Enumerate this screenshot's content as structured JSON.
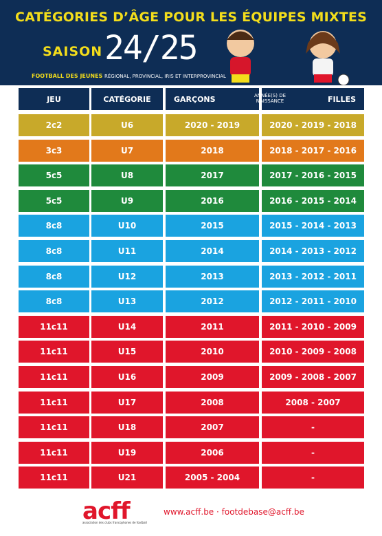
{
  "header": {
    "title": "CATÉGORIES D’ÂGE POUR LES ÉQUIPES MIXTES",
    "saison": "SAISON",
    "season": "24/25",
    "subtitle_bold": "FOOTBALL DES JEUNES",
    "subtitle": "RÉGIONAL, PROVINCIAL, IRIS ET INTERPROVINCIAL"
  },
  "table": {
    "columns": [
      "JEU",
      "CATÉGORIE",
      "GARÇONS",
      "ANNÉE(S) DE NAISSANCE",
      "FILLES"
    ],
    "rows": [
      {
        "jeu": "2c2",
        "categorie": "U6",
        "garcons": "2020 - 2019",
        "filles": "2020 - 2019 - 2018",
        "color": "#c8a92a"
      },
      {
        "jeu": "3c3",
        "categorie": "U7",
        "garcons": "2018",
        "filles": "2018 - 2017 - 2016",
        "color": "#e2791b"
      },
      {
        "jeu": "5c5",
        "categorie": "U8",
        "garcons": "2017",
        "filles": "2017 - 2016 - 2015",
        "color": "#1f8a3c"
      },
      {
        "jeu": "5c5",
        "categorie": "U9",
        "garcons": "2016",
        "filles": "2016 - 2015 - 2014",
        "color": "#1f8a3c"
      },
      {
        "jeu": "8c8",
        "categorie": "U10",
        "garcons": "2015",
        "filles": "2015 - 2014 - 2013",
        "color": "#1aa3e0"
      },
      {
        "jeu": "8c8",
        "categorie": "U11",
        "garcons": "2014",
        "filles": "2014 - 2013 - 2012",
        "color": "#1aa3e0"
      },
      {
        "jeu": "8c8",
        "categorie": "U12",
        "garcons": "2013",
        "filles": "2013 - 2012 - 2011",
        "color": "#1aa3e0"
      },
      {
        "jeu": "8c8",
        "categorie": "U13",
        "garcons": "2012",
        "filles": "2012 - 2011 - 2010",
        "color": "#1aa3e0"
      },
      {
        "jeu": "11c11",
        "categorie": "U14",
        "garcons": "2011",
        "filles": "2011 - 2010 - 2009",
        "color": "#e0162b"
      },
      {
        "jeu": "11c11",
        "categorie": "U15",
        "garcons": "2010",
        "filles": "2010 - 2009 - 2008",
        "color": "#e0162b"
      },
      {
        "jeu": "11c11",
        "categorie": "U16",
        "garcons": "2009",
        "filles": "2009 - 2008 - 2007",
        "color": "#e0162b"
      },
      {
        "jeu": "11c11",
        "categorie": "U17",
        "garcons": "2008",
        "filles": "2008 - 2007",
        "color": "#e0162b"
      },
      {
        "jeu": "11c11",
        "categorie": "U18",
        "garcons": "2007",
        "filles": "-",
        "color": "#e0162b"
      },
      {
        "jeu": "11c11",
        "categorie": "U19",
        "garcons": "2006",
        "filles": "-",
        "color": "#e0162b"
      },
      {
        "jeu": "11c11",
        "categorie": "U21",
        "garcons": "2005 - 2004",
        "filles": "-",
        "color": "#e0162b"
      }
    ]
  },
  "footer": {
    "logo": "acff",
    "logo_caption": "association des clubs francophones de football",
    "contact": "www.acff.be · footdebase@acff.be"
  }
}
